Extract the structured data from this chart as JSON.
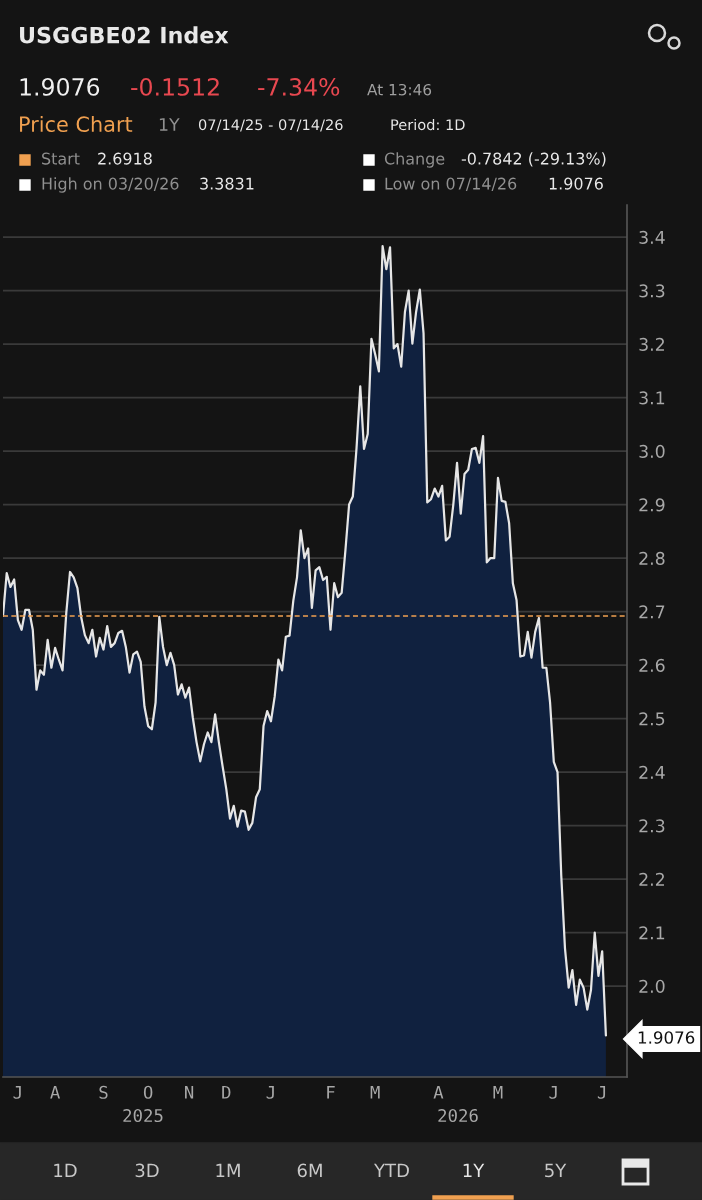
{
  "chart_data": {
    "type": "area",
    "title": "USGGBE02 Index",
    "annotations": [
      "1.9076",
      "-0.1512",
      "-7.34%",
      "At 13:46",
      "Price Chart",
      "1Y",
      "07/14/25 - 07/14/26",
      "Period: 1D",
      "Start",
      "2.6918",
      "Change",
      "-0.7842 (-29.13%)",
      "High on 03/20/26",
      "3.3831",
      "Low on 07/14/26",
      "1.9076",
      "1D",
      "3D",
      "1M",
      "6M",
      "YTD",
      "1Y",
      "5Y",
      "2025",
      "2026",
      "1.9076"
    ],
    "categories": [
      null,
      null,
      null,
      null,
      "J",
      null,
      null,
      null,
      null,
      null,
      null,
      null,
      null,
      null,
      "A",
      null,
      null,
      null,
      null,
      null,
      null,
      null,
      null,
      null,
      null,
      null,
      null,
      "S",
      null,
      null,
      null,
      null,
      null,
      null,
      null,
      null,
      null,
      null,
      null,
      "O",
      null,
      null,
      null,
      null,
      null,
      null,
      null,
      null,
      null,
      null,
      "N",
      null,
      null,
      null,
      null,
      null,
      null,
      null,
      null,
      null,
      "D",
      null,
      null,
      null,
      null,
      null,
      null,
      null,
      null,
      null,
      null,
      null,
      "J",
      null,
      null,
      null,
      null,
      null,
      null,
      null,
      null,
      null,
      null,
      null,
      null,
      null,
      null,
      null,
      "F",
      null,
      null,
      null,
      null,
      null,
      null,
      null,
      null,
      null,
      null,
      null,
      "M",
      null,
      null,
      null,
      null,
      null,
      null,
      null,
      null,
      null,
      null,
      null,
      null,
      null,
      null,
      null,
      null,
      "A",
      null,
      null,
      null,
      null,
      null,
      null,
      null,
      null,
      null,
      null,
      null,
      null,
      null,
      null,
      null,
      "M",
      null,
      null,
      null,
      null,
      null,
      null,
      null,
      null,
      null,
      null,
      null,
      null,
      null,
      null,
      "J",
      null,
      null,
      null,
      null,
      null,
      null,
      null,
      null,
      null,
      null,
      null,
      null,
      "J",
      null
    ],
    "series": [
      {
        "color": "#10213f",
        "values": [
          2.6918,
          2.772,
          2.746,
          2.76,
          2.684,
          2.666,
          2.703,
          2.703,
          2.666,
          2.554,
          2.59,
          2.582,
          2.647,
          2.595,
          2.632,
          2.61,
          2.59,
          2.697,
          2.774,
          2.764,
          2.744,
          2.69,
          2.656,
          2.641,
          2.666,
          2.616,
          2.651,
          2.629,
          2.673,
          2.634,
          2.641,
          2.66,
          2.664,
          2.634,
          2.586,
          2.62,
          2.625,
          2.606,
          2.523,
          2.486,
          2.48,
          2.53,
          2.69,
          2.634,
          2.6,
          2.623,
          2.6,
          2.545,
          2.564,
          2.539,
          2.558,
          2.502,
          2.456,
          2.42,
          2.452,
          2.474,
          2.456,
          2.508,
          2.456,
          2.411,
          2.368,
          2.313,
          2.337,
          2.298,
          2.328,
          2.326,
          2.292,
          2.305,
          2.353,
          2.368,
          2.486,
          2.514,
          2.495,
          2.541,
          2.61,
          2.59,
          2.653,
          2.655,
          2.72,
          2.764,
          2.852,
          2.8,
          2.818,
          2.707,
          2.777,
          2.783,
          2.759,
          2.765,
          2.666,
          2.753,
          2.727,
          2.735,
          2.814,
          2.9,
          2.915,
          3.006,
          3.121,
          3.004,
          3.032,
          3.21,
          3.181,
          3.149,
          3.3831,
          3.34,
          3.381,
          3.192,
          3.2,
          3.158,
          3.26,
          3.3,
          3.201,
          3.26,
          3.302,
          3.22,
          2.904,
          2.91,
          2.93,
          2.915,
          2.935,
          2.833,
          2.84,
          2.9,
          2.978,
          2.883,
          2.957,
          2.965,
          3.004,
          3.006,
          2.978,
          3.028,
          2.792,
          2.8,
          2.8,
          2.95,
          2.907,
          2.905,
          2.865,
          2.753,
          2.721,
          2.616,
          2.618,
          2.662,
          2.614,
          2.662,
          2.688,
          2.595,
          2.595,
          2.53,
          2.419,
          2.4,
          2.207,
          2.071,
          1.997,
          2.03,
          1.965,
          2.012,
          1.997,
          1.956,
          1.993,
          2.1,
          2.019,
          2.065,
          1.9076
        ]
      }
    ],
    "ylim": [
      1.83,
      3.46
    ],
    "yticks": [
      {
        "value": 2.0,
        "label": "2.0"
      },
      2.1,
      2.2,
      2.3,
      2.4,
      2.5,
      2.6,
      2.7,
      2.8,
      2.9,
      {
        "value": 3.0,
        "label": "3.0"
      },
      3.1,
      3.2,
      3.3,
      3.4
    ],
    "ref_lines": [
      {
        "axis": "y",
        "value": 2.6918,
        "color": "#f0a050",
        "line_style": "dashed"
      }
    ],
    "grid": "y"
  }
}
